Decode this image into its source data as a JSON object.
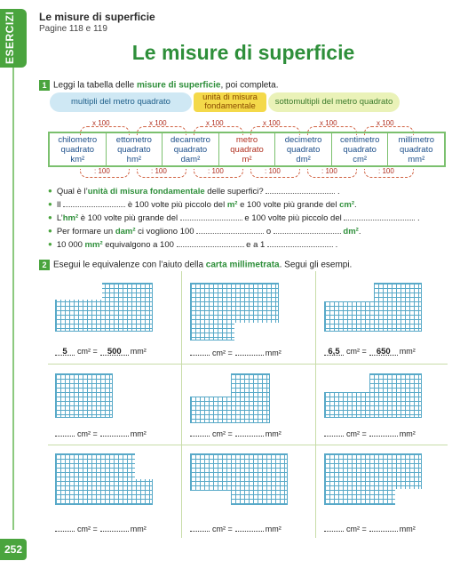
{
  "sidebar": {
    "tab_label": "ESERCIZI",
    "page_number": "252"
  },
  "header": {
    "title": "Le misure di superficie",
    "pages": "Pagine 118 e 119"
  },
  "main_title": "Le misure di superficie",
  "exercise1": {
    "number": "1",
    "instruction_pre": "Leggi la tabella delle ",
    "instruction_bold": "misure di superficie",
    "instruction_post": ", poi completa.",
    "categories": {
      "multipli": "multipli del metro quadrato",
      "fondamentale": "unità di misura fondamentale",
      "sottomultipli": "sottomultipli del metro quadrato"
    },
    "factor_top": "x 100",
    "factor_bottom": ": 100",
    "units": [
      {
        "name": "chilometro quadrato",
        "symbol": "km²"
      },
      {
        "name": "ettometro quadrato",
        "symbol": "hm²"
      },
      {
        "name": "decametro quadrato",
        "symbol": "dam²"
      },
      {
        "name": "metro quadrato",
        "symbol": "m²"
      },
      {
        "name": "decimetro quadrato",
        "symbol": "dm²"
      },
      {
        "name": "centimetro quadrato",
        "symbol": "cm²"
      },
      {
        "name": "millimetro quadrato",
        "symbol": "mm²"
      }
    ],
    "questions": {
      "q1_a": "Qual è l’",
      "q1_b": "unità di misura fondamentale",
      "q1_c": " delle superfici? ",
      "q1_d": " .",
      "q2_a": "Il ",
      "q2_b": " è 100 volte più piccolo del ",
      "q2_c": "m²",
      "q2_d": " e 100 volte più grande del ",
      "q2_e": "cm²",
      "q2_f": ".",
      "q3_a": "L’",
      "q3_b": "hm²",
      "q3_c": " è 100 volte più grande del ",
      "q3_d": " e 100 volte più piccolo del ",
      "q3_e": " .",
      "q4_a": "Per formare un ",
      "q4_b": "dam²",
      "q4_c": " ci vogliono 100 ",
      "q4_d": " o ",
      "q4_e": " dm²",
      "q4_f": ".",
      "q5_a": "10 000 ",
      "q5_b": "mm²",
      "q5_c": " equivalgono a 100 ",
      "q5_d": " e a 1 ",
      "q5_e": " ."
    }
  },
  "exercise2": {
    "number": "2",
    "instruction_pre": "Esegui le equivalenze con l’aiuto della ",
    "instruction_bold": "carta millimetrata",
    "instruction_post": ". Segui gli esempi.",
    "unit_cm": "cm² =",
    "unit_mm": "mm²",
    "examples": [
      {
        "cm": "5",
        "mm": "500"
      },
      {
        "cm": "",
        "mm": ""
      },
      {
        "cm": "6,5",
        "mm": "650"
      },
      {
        "cm": "",
        "mm": ""
      },
      {
        "cm": "",
        "mm": ""
      },
      {
        "cm": "",
        "mm": ""
      },
      {
        "cm": "",
        "mm": ""
      },
      {
        "cm": "",
        "mm": ""
      },
      {
        "cm": "",
        "mm": ""
      }
    ]
  }
}
